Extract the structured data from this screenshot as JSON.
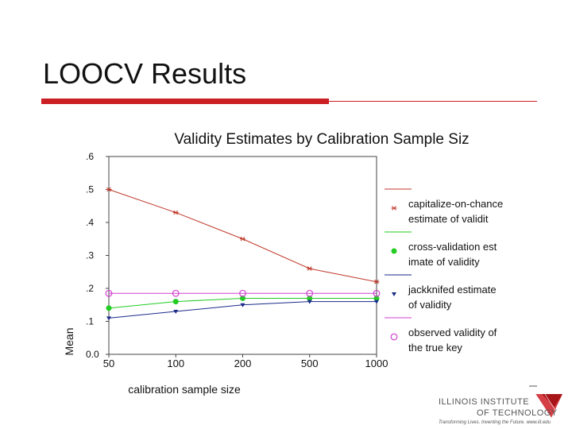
{
  "slide": {
    "title": "LOOCV Results"
  },
  "logo": {
    "line1": "ILLINOIS INSTITUTE",
    "line2": "OF TECHNOLOGY",
    "tagline": "Transforming Lives. Inventing the Future. www.iit.edu",
    "colors": {
      "text": "#555555",
      "mark": "#cc1f24"
    }
  },
  "colors": {
    "accent_red": "#cc1f24"
  },
  "chart_data": {
    "type": "line",
    "title": "Validity Estimates by Calibration Sample Siz",
    "xlabel": "calibration sample size",
    "ylabel": "Mean",
    "categories": [
      "50",
      "100",
      "200",
      "500",
      "1000"
    ],
    "y_ticks": [
      ".6",
      ".5",
      ".4",
      ".3",
      ".2",
      ".1",
      "0.0"
    ],
    "y_tick_values": [
      0.6,
      0.5,
      0.4,
      0.3,
      0.2,
      0.1,
      0.0
    ],
    "ylim": [
      0,
      0.6
    ],
    "grid": false,
    "legend_position": "right",
    "series": [
      {
        "name": "capitalize-on-chance estimate of validit",
        "legend_lines": [
          "capitalize-on-chance",
          "estimate of validit"
        ],
        "values": [
          0.5,
          0.43,
          0.35,
          0.26,
          0.22
        ],
        "color": "#c0392b",
        "marker": "asterisk"
      },
      {
        "name": "cross-validation estimate of validity",
        "legend_lines": [
          "cross-validation est",
          "imate of validity"
        ],
        "values": [
          0.14,
          0.16,
          0.17,
          0.17,
          0.17
        ],
        "color": "#22cc22",
        "marker": "circle-filled"
      },
      {
        "name": "jackknifed estimate of validity",
        "legend_lines": [
          "jackknifed estimate",
          "of validity"
        ],
        "values": [
          0.11,
          0.13,
          0.15,
          0.16,
          0.16
        ],
        "color": "#1a2a8a",
        "marker": "triangle-down"
      },
      {
        "name": "observed validity of the true key",
        "legend_lines": [
          "observed validity of",
          "the true key"
        ],
        "values": [
          0.185,
          0.185,
          0.185,
          0.185,
          0.185
        ],
        "color": "#d040d0",
        "marker": "circle-open"
      }
    ]
  }
}
